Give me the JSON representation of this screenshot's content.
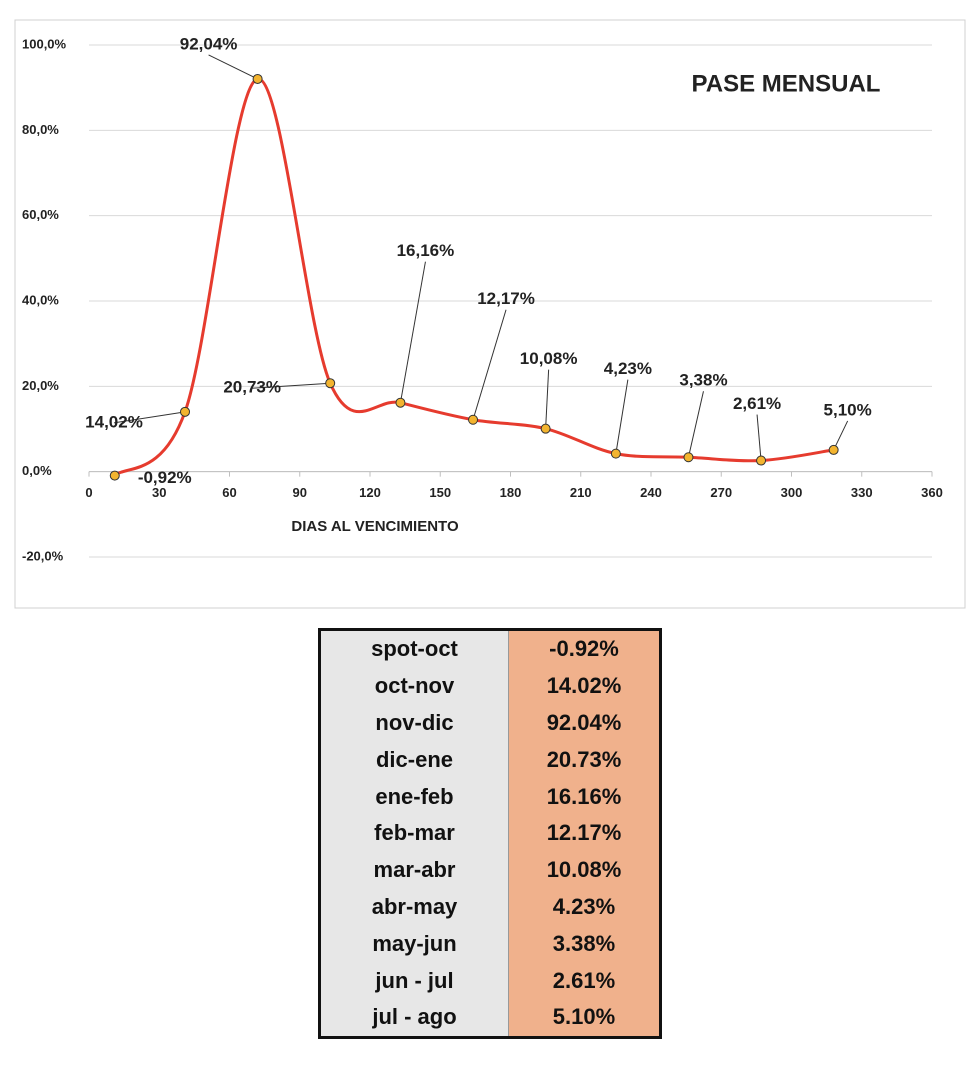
{
  "chart_data": {
    "type": "line",
    "title": "PASE MENSUAL",
    "xlabel": "DIAS AL VENCIMIENTO",
    "x": [
      11,
      41,
      72,
      103,
      133,
      164,
      195,
      225,
      256,
      287,
      318
    ],
    "values": [
      -0.92,
      14.02,
      92.04,
      20.73,
      16.16,
      12.17,
      10.08,
      4.23,
      3.38,
      2.61,
      5.1
    ],
    "value_labels": [
      "-0,92%",
      "14,02%",
      "92,04%",
      "20,73%",
      "16,16%",
      "12,17%",
      "10,08%",
      "4,23%",
      "3,38%",
      "2,61%",
      "5,10%"
    ],
    "color": "#e63b2e",
    "marker_color": "#f3b42f",
    "xlim": [
      0,
      360
    ],
    "xticks": [
      0,
      30,
      60,
      90,
      120,
      150,
      180,
      210,
      240,
      270,
      300,
      330,
      360
    ],
    "ylim": [
      -20,
      100
    ],
    "yticks": [
      {
        "value": -20,
        "label": "-20,0%"
      },
      {
        "value": 0,
        "label": "0,0%"
      },
      {
        "value": 20,
        "label": "20,0%"
      },
      {
        "value": 40,
        "label": "40,0%"
      },
      {
        "value": 60,
        "label": "60,0%"
      },
      {
        "value": 80,
        "label": "80,0%"
      },
      {
        "value": 100,
        "label": "100,0%"
      }
    ],
    "grid": true
  },
  "table": {
    "rows": [
      [
        "spot-oct",
        "-0.92%"
      ],
      [
        "oct-nov",
        "14.02%"
      ],
      [
        "nov-dic",
        "92.04%"
      ],
      [
        "dic-ene",
        "20.73%"
      ],
      [
        "ene-feb",
        "16.16%"
      ],
      [
        "feb-mar",
        "12.17%"
      ],
      [
        "mar-abr",
        "10.08%"
      ],
      [
        "abr-may",
        "4.23%"
      ],
      [
        "may-jun",
        "3.38%"
      ],
      [
        "jun - jul",
        "2.61%"
      ],
      [
        "jul - ago",
        "5.10%"
      ]
    ]
  }
}
